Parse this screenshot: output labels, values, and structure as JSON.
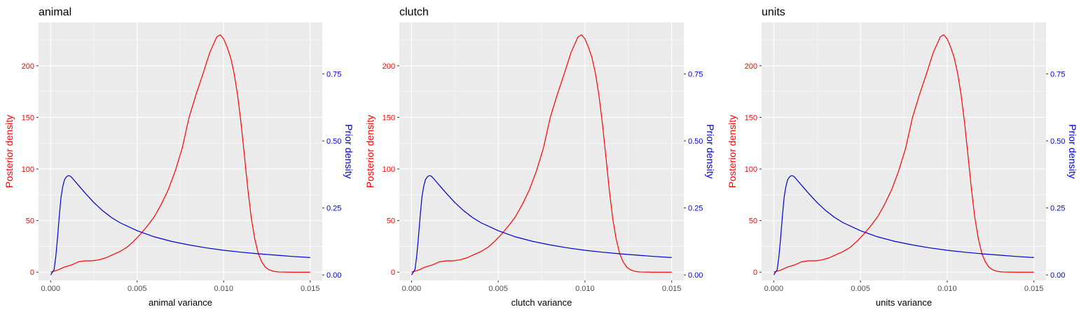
{
  "colors": {
    "panel_background": "#ebebeb",
    "grid": "#ffffff",
    "posterior": "#ff0000",
    "prior": "#0000cd",
    "axis_text": "#4d4d4d"
  },
  "chart_data": [
    {
      "type": "line",
      "title": "animal",
      "xlabel": "animal variance",
      "ylabel": "Posterior density",
      "y2label": "Prior density",
      "xlim": [
        -0.0007,
        0.0157
      ],
      "ylim": [
        -8,
        242
      ],
      "y2lim": [
        -0.0204,
        0.9418
      ],
      "x_ticks": [
        "0.000",
        "0.005",
        "0.010",
        "0.015"
      ],
      "x_tick_values": [
        0,
        0.005,
        0.01,
        0.015
      ],
      "y_ticks": [
        "0",
        "50",
        "100",
        "150",
        "200"
      ],
      "y_tick_values": [
        0,
        50,
        100,
        150,
        200
      ],
      "y2_ticks": [
        "0.00",
        "0.25",
        "0.50",
        "0.75"
      ],
      "y2_tick_values": [
        0,
        0.25,
        0.5,
        0.75
      ],
      "grid": true,
      "series": [
        {
          "name": "Posterior density",
          "axis": "left",
          "x": [
            0,
            0.0004,
            0.0008,
            0.0012,
            0.0016,
            0.002,
            0.0024,
            0.0028,
            0.0032,
            0.0036,
            0.004,
            0.0044,
            0.0048,
            0.0052,
            0.0056,
            0.006,
            0.0064,
            0.0068,
            0.0072,
            0.0076,
            0.008,
            0.0084,
            0.0088,
            0.0092,
            0.0096,
            0.0098,
            0.01,
            0.0102,
            0.0104,
            0.0106,
            0.0108,
            0.011,
            0.0112,
            0.0114,
            0.0116,
            0.0118,
            0.012,
            0.0122,
            0.0124,
            0.0126,
            0.0128,
            0.013,
            0.0132,
            0.0136,
            0.014,
            0.015
          ],
          "y": [
            0,
            2,
            5,
            7,
            10,
            11,
            11,
            12,
            14,
            17,
            20,
            24,
            30,
            37,
            45,
            54,
            66,
            80,
            98,
            120,
            150,
            172,
            192,
            213,
            228,
            230,
            226,
            218,
            208,
            193,
            172,
            145,
            113,
            80,
            52,
            32,
            18,
            10,
            5,
            2.5,
            1.2,
            0.5,
            0.2,
            0.05,
            0,
            0
          ]
        },
        {
          "name": "Prior density",
          "axis": "right",
          "x": [
            0,
            0.0002,
            0.0003,
            0.0004,
            0.0005,
            0.0006,
            0.0007,
            0.0008,
            0.0009,
            0.001,
            0.0011,
            0.0012,
            0.0014,
            0.0016,
            0.0018,
            0.002,
            0.0025,
            0.003,
            0.0035,
            0.004,
            0.005,
            0.006,
            0.007,
            0.008,
            0.009,
            0.01,
            0.011,
            0.012,
            0.013,
            0.014,
            0.015
          ],
          "y": [
            0,
            0.02,
            0.07,
            0.14,
            0.22,
            0.29,
            0.33,
            0.355,
            0.365,
            0.37,
            0.37,
            0.365,
            0.35,
            0.335,
            0.32,
            0.305,
            0.27,
            0.24,
            0.215,
            0.195,
            0.165,
            0.142,
            0.125,
            0.112,
            0.101,
            0.092,
            0.085,
            0.079,
            0.074,
            0.069,
            0.065
          ]
        }
      ]
    },
    {
      "type": "line",
      "title": "clutch",
      "xlabel": "clutch variance",
      "ylabel": "Posterior density",
      "y2label": "Prior density",
      "xlim": [
        -0.0007,
        0.0157
      ],
      "ylim": [
        -8,
        242
      ],
      "y2lim": [
        -0.0204,
        0.9418
      ],
      "x_ticks": [
        "0.000",
        "0.005",
        "0.010",
        "0.015"
      ],
      "x_tick_values": [
        0,
        0.005,
        0.01,
        0.015
      ],
      "y_ticks": [
        "0",
        "50",
        "100",
        "150",
        "200"
      ],
      "y_tick_values": [
        0,
        50,
        100,
        150,
        200
      ],
      "y2_ticks": [
        "0.00",
        "0.25",
        "0.50",
        "0.75"
      ],
      "y2_tick_values": [
        0,
        0.25,
        0.5,
        0.75
      ],
      "grid": true,
      "series": [
        {
          "name": "Posterior density",
          "axis": "left",
          "x": [
            0,
            0.0004,
            0.0008,
            0.0012,
            0.0016,
            0.002,
            0.0024,
            0.0028,
            0.0032,
            0.0036,
            0.004,
            0.0044,
            0.0048,
            0.0052,
            0.0056,
            0.006,
            0.0064,
            0.0068,
            0.0072,
            0.0076,
            0.008,
            0.0084,
            0.0088,
            0.0092,
            0.0096,
            0.0098,
            0.01,
            0.0102,
            0.0104,
            0.0106,
            0.0108,
            0.011,
            0.0112,
            0.0114,
            0.0116,
            0.0118,
            0.012,
            0.0122,
            0.0124,
            0.0126,
            0.0128,
            0.013,
            0.0132,
            0.0136,
            0.014,
            0.015
          ],
          "y": [
            0,
            2,
            5,
            7,
            10,
            11,
            11,
            12,
            14,
            17,
            20,
            24,
            30,
            37,
            45,
            54,
            66,
            80,
            98,
            120,
            150,
            172,
            192,
            213,
            228,
            230,
            226,
            218,
            208,
            193,
            172,
            145,
            113,
            80,
            52,
            32,
            18,
            10,
            5,
            2.5,
            1.2,
            0.5,
            0.2,
            0.05,
            0,
            0
          ]
        },
        {
          "name": "Prior density",
          "axis": "right",
          "x": [
            0,
            0.0002,
            0.0003,
            0.0004,
            0.0005,
            0.0006,
            0.0007,
            0.0008,
            0.0009,
            0.001,
            0.0011,
            0.0012,
            0.0014,
            0.0016,
            0.0018,
            0.002,
            0.0025,
            0.003,
            0.0035,
            0.004,
            0.005,
            0.006,
            0.007,
            0.008,
            0.009,
            0.01,
            0.011,
            0.012,
            0.013,
            0.014,
            0.015
          ],
          "y": [
            0,
            0.02,
            0.07,
            0.14,
            0.22,
            0.29,
            0.33,
            0.355,
            0.365,
            0.37,
            0.37,
            0.365,
            0.35,
            0.335,
            0.32,
            0.305,
            0.27,
            0.24,
            0.215,
            0.195,
            0.165,
            0.142,
            0.125,
            0.112,
            0.101,
            0.092,
            0.085,
            0.079,
            0.074,
            0.069,
            0.065
          ]
        }
      ]
    },
    {
      "type": "line",
      "title": "units",
      "xlabel": "units variance",
      "ylabel": "Posterior density",
      "y2label": "Prior density",
      "xlim": [
        -0.0007,
        0.0157
      ],
      "ylim": [
        -8,
        242
      ],
      "y2lim": [
        -0.0204,
        0.9418
      ],
      "x_ticks": [
        "0.000",
        "0.005",
        "0.010",
        "0.015"
      ],
      "x_tick_values": [
        0,
        0.005,
        0.01,
        0.015
      ],
      "y_ticks": [
        "0",
        "50",
        "100",
        "150",
        "200"
      ],
      "y_tick_values": [
        0,
        50,
        100,
        150,
        200
      ],
      "y2_ticks": [
        "0.00",
        "0.25",
        "0.50",
        "0.75"
      ],
      "y2_tick_values": [
        0,
        0.25,
        0.5,
        0.75
      ],
      "grid": true,
      "series": [
        {
          "name": "Posterior density",
          "axis": "left",
          "x": [
            0,
            0.0004,
            0.0008,
            0.0012,
            0.0016,
            0.002,
            0.0024,
            0.0028,
            0.0032,
            0.0036,
            0.004,
            0.0044,
            0.0048,
            0.0052,
            0.0056,
            0.006,
            0.0064,
            0.0068,
            0.0072,
            0.0076,
            0.008,
            0.0084,
            0.0088,
            0.0092,
            0.0096,
            0.0098,
            0.01,
            0.0102,
            0.0104,
            0.0106,
            0.0108,
            0.011,
            0.0112,
            0.0114,
            0.0116,
            0.0118,
            0.012,
            0.0122,
            0.0124,
            0.0126,
            0.0128,
            0.013,
            0.0132,
            0.0136,
            0.014,
            0.015
          ],
          "y": [
            0,
            2,
            5,
            7,
            10,
            11,
            11,
            12,
            14,
            17,
            20,
            24,
            30,
            37,
            45,
            54,
            66,
            80,
            98,
            120,
            150,
            172,
            192,
            213,
            228,
            230,
            226,
            218,
            208,
            193,
            172,
            145,
            113,
            80,
            52,
            32,
            18,
            10,
            5,
            2.5,
            1.2,
            0.5,
            0.2,
            0.05,
            0,
            0
          ]
        },
        {
          "name": "Prior density",
          "axis": "right",
          "x": [
            0,
            0.0002,
            0.0003,
            0.0004,
            0.0005,
            0.0006,
            0.0007,
            0.0008,
            0.0009,
            0.001,
            0.0011,
            0.0012,
            0.0014,
            0.0016,
            0.0018,
            0.002,
            0.0025,
            0.003,
            0.0035,
            0.004,
            0.005,
            0.006,
            0.007,
            0.008,
            0.009,
            0.01,
            0.011,
            0.012,
            0.013,
            0.014,
            0.015
          ],
          "y": [
            0,
            0.02,
            0.07,
            0.14,
            0.22,
            0.29,
            0.33,
            0.355,
            0.365,
            0.37,
            0.37,
            0.365,
            0.35,
            0.335,
            0.32,
            0.305,
            0.27,
            0.24,
            0.215,
            0.195,
            0.165,
            0.142,
            0.125,
            0.112,
            0.101,
            0.092,
            0.085,
            0.079,
            0.074,
            0.069,
            0.065
          ]
        }
      ]
    }
  ]
}
